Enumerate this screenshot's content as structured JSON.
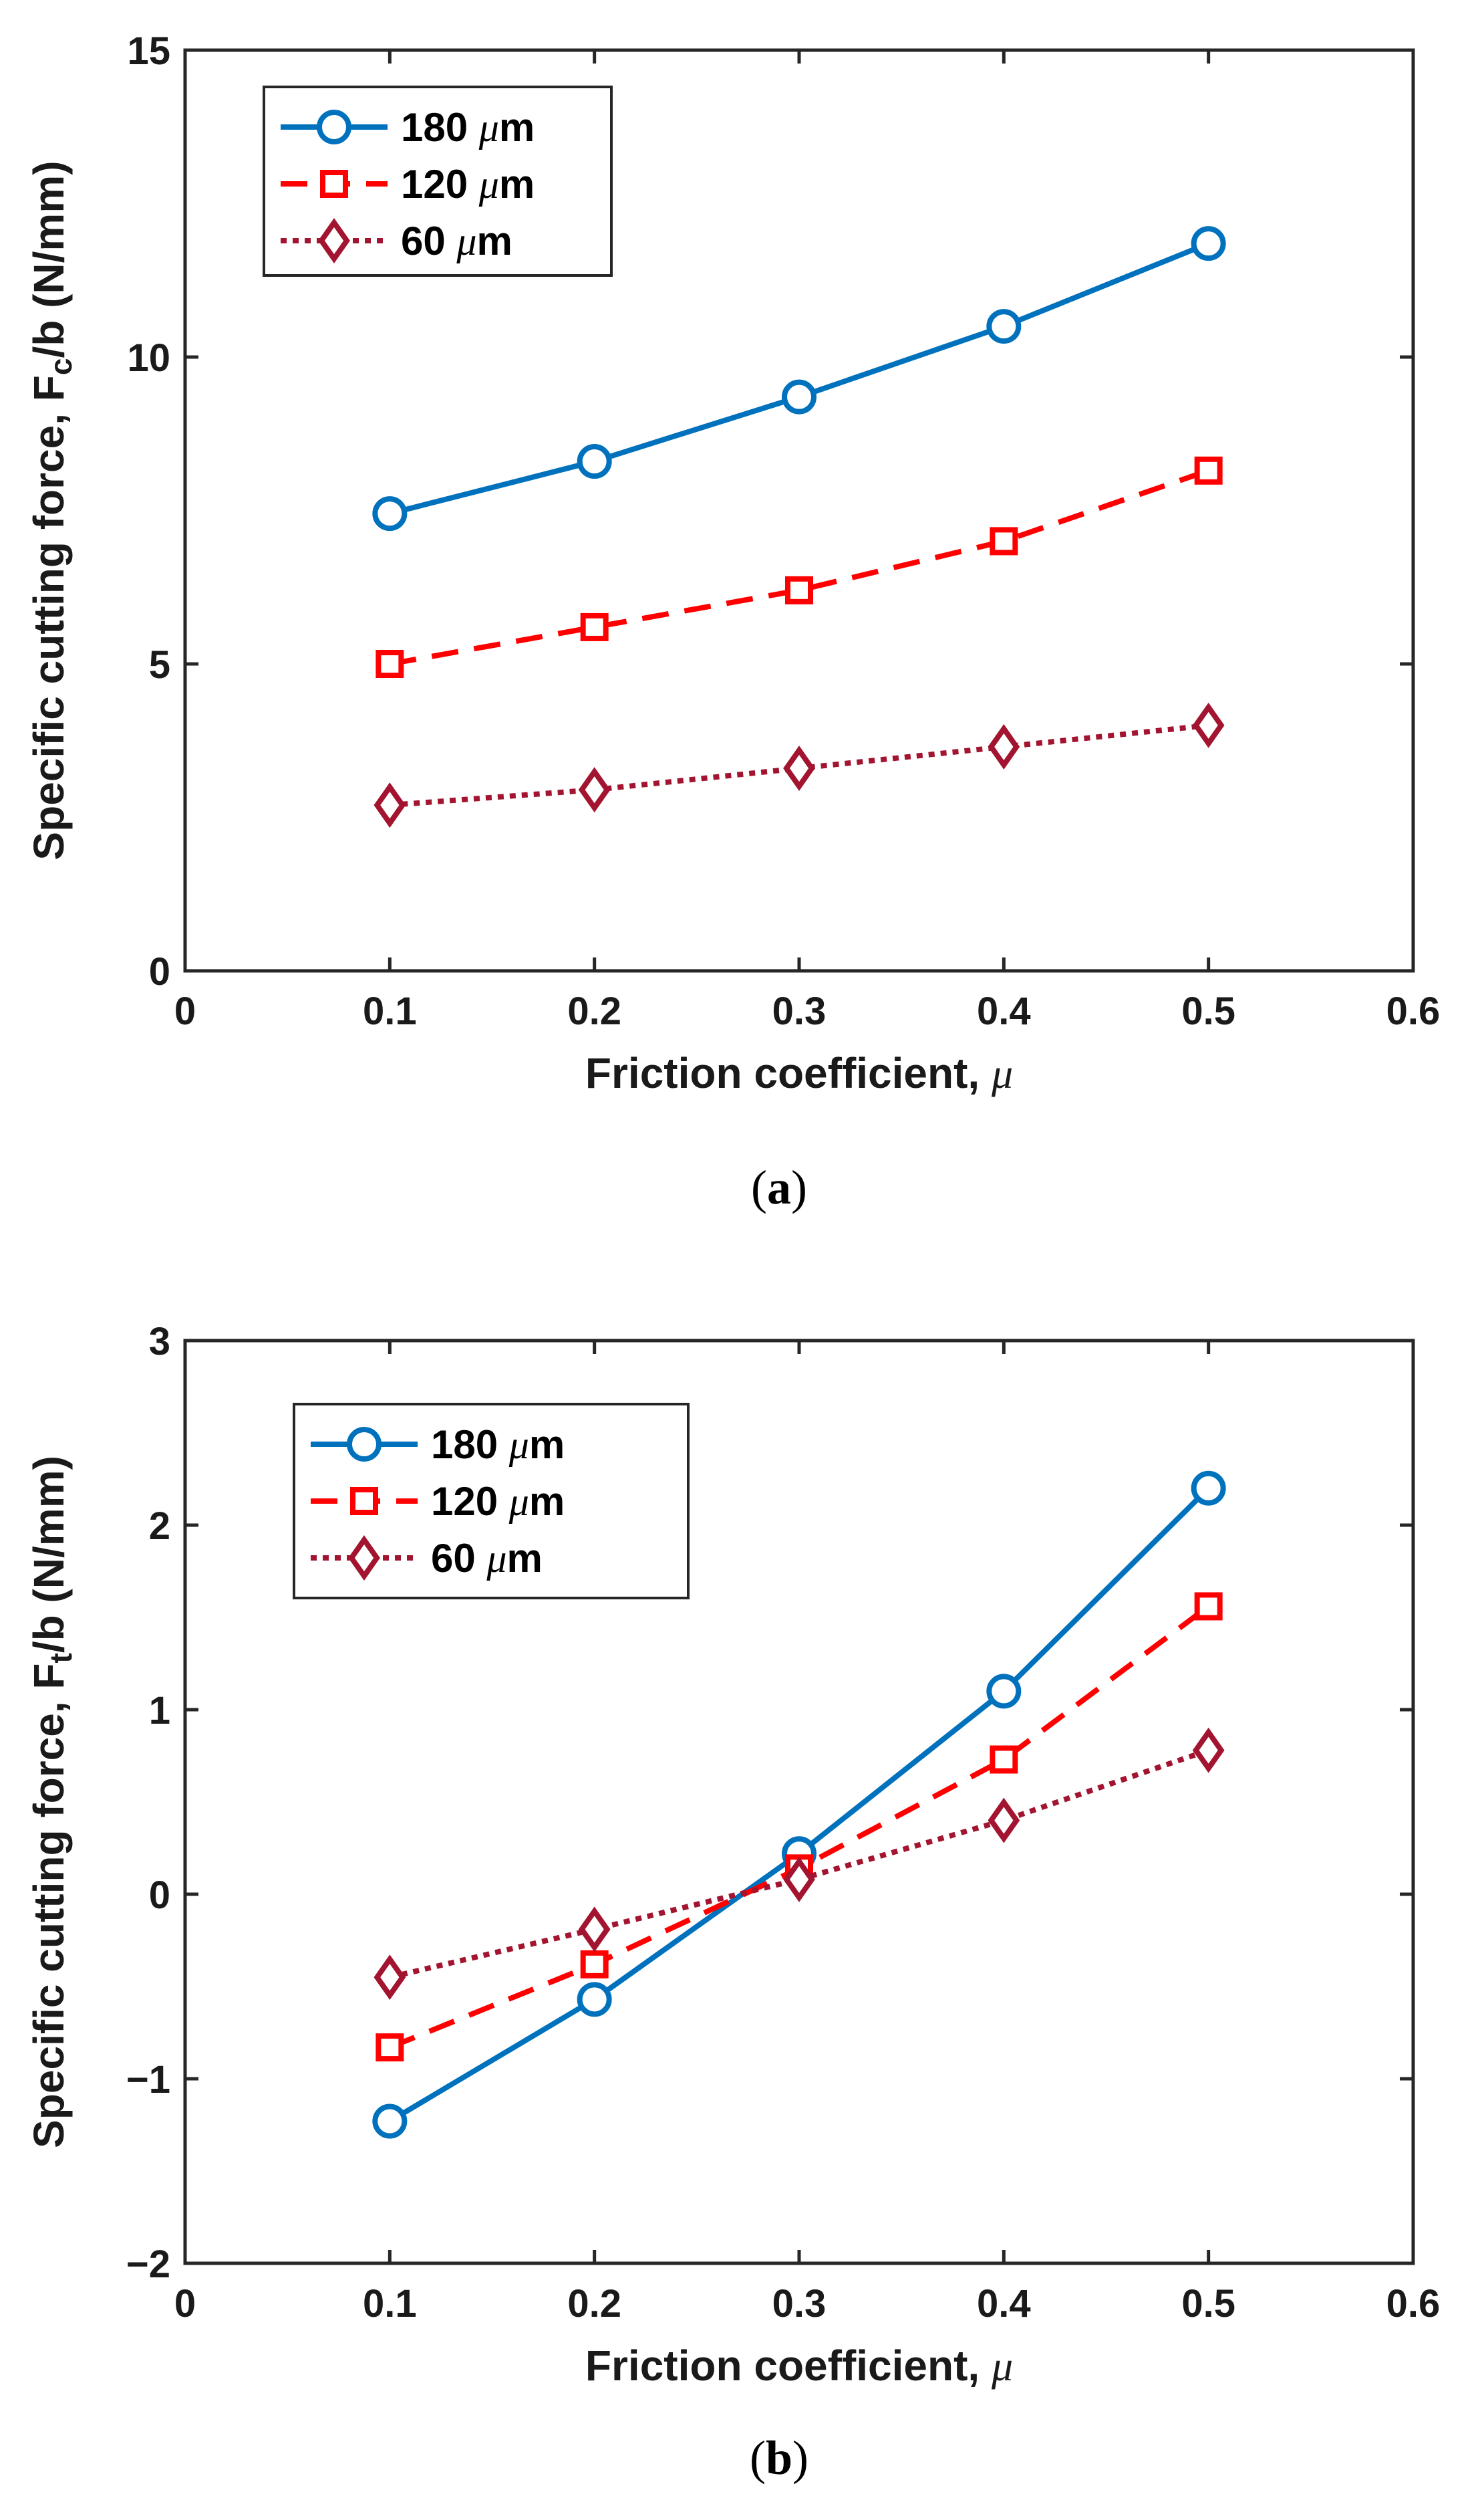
{
  "chart_data": [
    {
      "type": "line",
      "panel": "a",
      "caption_label": "a",
      "xlabel": "Friction coefficient, ",
      "xlabel_symbol": "μ",
      "ylabel_main": "Specific cutting force, F",
      "ylabel_sub": "c",
      "ylabel_tail": "/b (N/mm)",
      "xlim": [
        0,
        0.6
      ],
      "ylim": [
        0,
        15
      ],
      "xticks": [
        0,
        0.1,
        0.2,
        0.3,
        0.4,
        0.5,
        0.6
      ],
      "xtick_labels": [
        "0",
        "0.1",
        "0.2",
        "0.3",
        "0.4",
        "0.5",
        "0.6"
      ],
      "yticks": [
        0,
        5,
        10,
        15
      ],
      "ytick_labels": [
        "0",
        "5",
        "10",
        "15"
      ],
      "grid": false,
      "legend_position": "top-left",
      "x": [
        0.1,
        0.2,
        0.3,
        0.4,
        0.5
      ],
      "series": [
        {
          "name": "180 ",
          "unit": "μ",
          "unit_tail": "m",
          "marker": "circle",
          "dash": "solid",
          "color": "#0072BD",
          "values": [
            7.45,
            8.3,
            9.35,
            10.5,
            11.85
          ]
        },
        {
          "name": "120 ",
          "unit": "μ",
          "unit_tail": "m",
          "marker": "square",
          "dash": "dashed",
          "color": "#FF0000",
          "values": [
            5.0,
            5.6,
            6.2,
            7.0,
            8.15
          ]
        },
        {
          "name": "60 ",
          "unit": "μ",
          "unit_tail": "m",
          "marker": "diamond",
          "dash": "dotted",
          "color": "#A2142F",
          "values": [
            2.7,
            2.95,
            3.3,
            3.65,
            4.0
          ]
        }
      ]
    },
    {
      "type": "line",
      "panel": "b",
      "caption_label": "b",
      "xlabel": "Friction coefficient, ",
      "xlabel_symbol": "μ",
      "ylabel_main": "Specific cutting force, F",
      "ylabel_sub": "t",
      "ylabel_tail": "/b (N/mm)",
      "xlim": [
        0,
        0.6
      ],
      "ylim": [
        -2,
        3
      ],
      "xticks": [
        0,
        0.1,
        0.2,
        0.3,
        0.4,
        0.5,
        0.6
      ],
      "xtick_labels": [
        "0",
        "0.1",
        "0.2",
        "0.3",
        "0.4",
        "0.5",
        "0.6"
      ],
      "yticks": [
        -2,
        -1,
        0,
        1,
        2,
        3
      ],
      "ytick_labels": [
        "−2",
        "−1",
        "0",
        "1",
        "2",
        "3"
      ],
      "grid": false,
      "legend_position": "top-left",
      "x": [
        0.1,
        0.2,
        0.3,
        0.4,
        0.5
      ],
      "series": [
        {
          "name": "180 ",
          "unit": "μ",
          "unit_tail": "m",
          "marker": "circle",
          "dash": "solid",
          "color": "#0072BD",
          "values": [
            -1.23,
            -0.57,
            0.22,
            1.1,
            2.2
          ]
        },
        {
          "name": "120 ",
          "unit": "μ",
          "unit_tail": "m",
          "marker": "square",
          "dash": "dashed",
          "color": "#FF0000",
          "values": [
            -0.83,
            -0.38,
            0.14,
            0.73,
            1.56
          ]
        },
        {
          "name": "60 ",
          "unit": "μ",
          "unit_tail": "m",
          "marker": "diamond",
          "dash": "dotted",
          "color": "#A2142F",
          "values": [
            -0.45,
            -0.19,
            0.08,
            0.4,
            0.78
          ]
        }
      ]
    }
  ]
}
